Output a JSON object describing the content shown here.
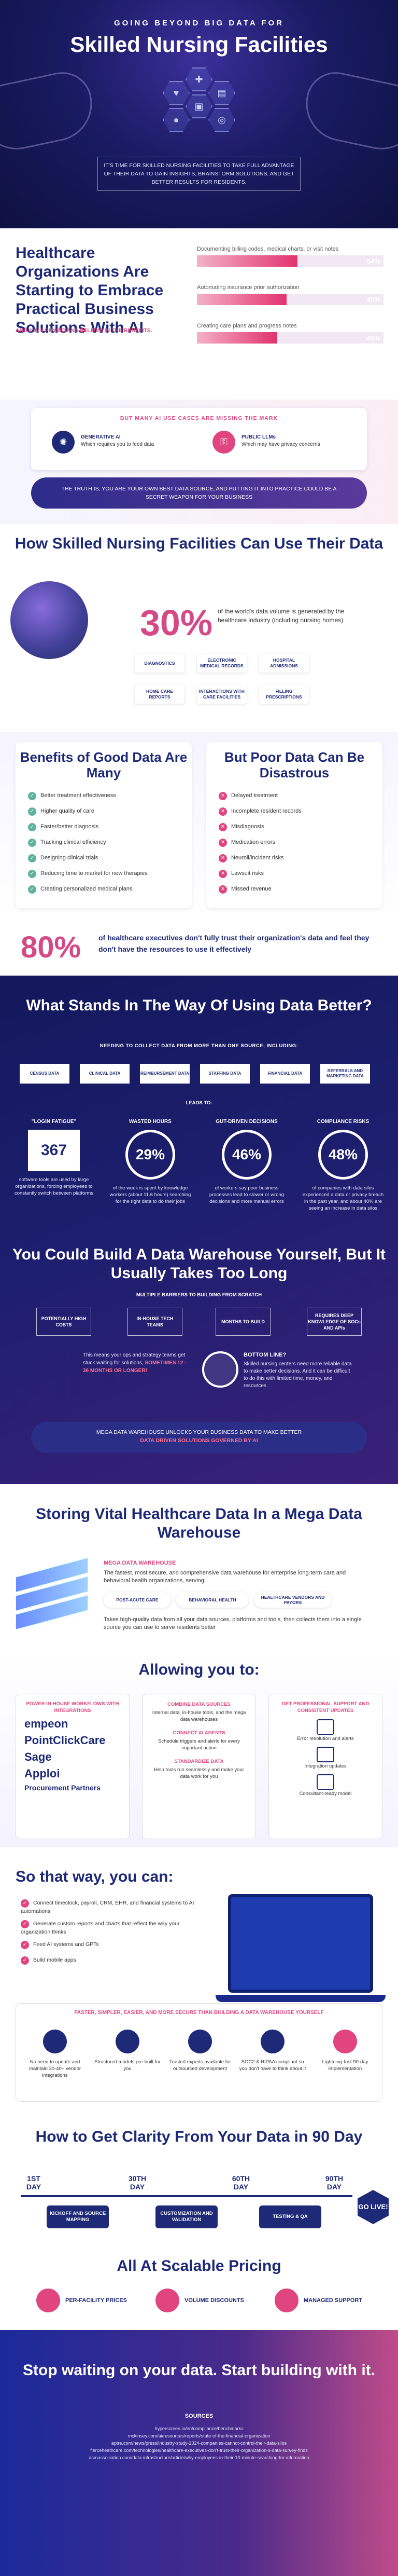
{
  "hero": {
    "kicker": "GOING BEYOND BIG DATA FOR",
    "title": "Skilled Nursing Facilities",
    "lead": "IT'S TIME FOR SKILLED NURSING FACILITIES TO TAKE FULL ADVANTAGE OF THEIR DATA TO GAIN INSIGHTS, BRAINSTORM SOLUTIONS, AND GET BETTER RESULTS FOR RESIDENTS."
  },
  "adoption": {
    "title": "Healthcare Organizations Are Starting to Embrace Practical Business Solutions With AI",
    "sub": "AND 2 IN 3 PHYSICIANS BELIEVE IN THE BENEFITS.",
    "bars": [
      {
        "label": "Documenting billing codes, medical charts, or visit notes",
        "pct_text": "54%",
        "value": 54
      },
      {
        "label": "Automating insurance prior authorization",
        "pct_text": "48%",
        "value": 48
      },
      {
        "label": "Creating care plans and progress notes",
        "pct_text": "43%",
        "value": 43
      }
    ]
  },
  "use_cases": {
    "title": "BUT MANY AI USE CASES ARE MISSING THE MARK",
    "left_head": "GENERATIVE AI",
    "left_text": "Which requires you to feed data",
    "right_head": "PUBLIC LLMs",
    "right_text": "Which may have privacy concerns",
    "truth": "THE TRUTH IS, YOU ARE YOUR OWN BEST DATA SOURCE, AND PUTTING IT INTO PRACTICE COULD BE A SECRET WEAPON FOR YOUR BUSINESS"
  },
  "how": {
    "title": "How Skilled Nursing Facilities Can Use Their Data",
    "stat": "30%",
    "desc": "of the world's data volume is generated by the healthcare industry (including nursing homes)",
    "tags": [
      "DIAGNOSTICS",
      "ELECTRONIC MEDICAL RECORDS",
      "HOSPITAL ADMISSIONS",
      "HOME CARE REPORTS",
      "INTERACTIONS WITH CARE FACILITIES",
      "FILLING PRESCRIPTIONS"
    ]
  },
  "benefits": {
    "title": "Benefits of Good Data Are Many",
    "items": [
      "Better treatment effectiveness",
      "Higher quality of care",
      "Faster/better diagnosis",
      "Tracking clinical efficiency",
      "Designing clinical trials",
      "Reducing time to market for new therapies",
      "Creating personalized medical plans"
    ]
  },
  "poor": {
    "title": "But Poor Data Can Be Disastrous",
    "items": [
      "Delayed treatment",
      "Incomplete resident records",
      "Misdiagnosis",
      "Medication errors",
      "Neuroll/incident risks",
      "Lawsuit risks",
      "Missed revenue"
    ]
  },
  "trust": {
    "stat": "80%",
    "text": "of healthcare executives don't fully trust their organization's data and feel they don't have the resources to use it effectively"
  },
  "obstacles": {
    "title": "What Stands In The Way Of Using Data Better?",
    "need": "NEEDING TO COLLECT DATA FROM MORE THAN ONE SOURCE, INCLUDING:",
    "sources": [
      "CENSUS DATA",
      "CLINICAL DATA",
      "REIMBURSEMENT DATA",
      "STAFFING DATA",
      "FINANCIAL DATA",
      "REFERRALS AND MARKETING DATA"
    ],
    "leads_to": "LEADS TO:",
    "stats": [
      {
        "head": "\"LOGIN FATIGUE\"",
        "value": "367",
        "text": "software tools are used by large organizations, forcing employees to constantly switch between platforms"
      },
      {
        "head": "WASTED HOURS",
        "value": "29%",
        "text": "of the week is spent by knowledge workers (about 11.6 hours) searching for the right data to do their jobs"
      },
      {
        "head": "GUT-DRIVEN DECISIONS",
        "value": "46%",
        "text": "of workers say poor business processes lead to slower or wrong decisions and more manual errors"
      },
      {
        "head": "COMPLIANCE RISKS",
        "value": "48%",
        "text": "of companies with data silos experienced a data or privacy breach in the past year, and about 40% are seeing an increase in data silos"
      }
    ],
    "warehouse_title": "You Could Build A Data Warehouse Yourself, But It Usually Takes Too Long",
    "barriers_head": "MULTIPLE BARRIERS TO BUILDING FROM SCRATCH",
    "barriers": [
      "POTENTIALLY HIGH COSTS",
      "IN-HOUSE TECH TEAMS",
      "MONTHS TO BUILD",
      "REQUIRES DEEP KNOWLEDGE OF SOCs AND APIs"
    ],
    "means": "This means your ops and strategy teams get stuck waiting for solutions,",
    "means_b": "SOMETIMES 12 - 36 MONTHS OR LONGER!",
    "bottom_head": "BOTTOM LINE?",
    "bottom_text": "Skilled nursing centers need more reliable data to make better decisions. And it can be difficult to do this with limited time, money, and resources.",
    "mega": "MEGA DATA WAREHOUSE UNLOCKS YOUR BUSINESS DATA TO MAKE BETTER",
    "mega_b": "DATA DRIVEN SOLUTIONS GOVERNED BY AI"
  },
  "storing": {
    "title": "Storing Vital Healthcare Data In a Mega Data Warehouse",
    "mt": "MEGA DATA WAREHOUSE",
    "md": "The fastest, most secure, and comprehensive data warehouse for enterprise long-term care and behavioral health organizations, serving:",
    "chips": [
      "POST-ACUTE CARE",
      "BEHAVIORAL HEALTH",
      "HEALTHCARE VENDORS AND PAYORS"
    ],
    "md2": "Takes high-quality data from all your data sources, platforms and tools, then collects them into a single source you can use to serve residents better"
  },
  "allowing": {
    "title": "Allowing you to:",
    "c1_title": "POWER IN-HOUSE WORKFLOWS WITH INTEGRATIONS",
    "logos": [
      "empeon",
      "PointClickCare",
      "Sage",
      "Apploi",
      "Procurement Partners"
    ],
    "c2_title": "COMBINE DATA SOURCES",
    "c2_text": "Internal data, in-house tools, and the mega data warehouses",
    "c2b_title": "CONNECT AI AGENTS",
    "c2b_text": "Schedule triggers and alerts for every important action",
    "c2c_title": "STANDARDIZE DATA",
    "c2c_text": "Help tools run seamlessly and make your data work for you",
    "c3_title": "GET PROFESSIONAL SUPPORT AND CONSISTENT UPDATES",
    "c3_items": [
      "Error resolution and alerts",
      "Integration updates",
      "Consultant-ready model"
    ]
  },
  "canway": {
    "title": "So that way, you can:",
    "items": [
      "Connect timeclock, payroll, CRM, EHR, and financial systems to AI automations",
      "Generate custom reports and charts that reflect the way your organization thinks",
      "Feed AI systems and GPTs",
      "Build mobile apps"
    ],
    "fast_title": "FASTER, SIMPLER, EASIER, AND MORE SECURE THAN BUILDING A DATA WAREHOUSE YOURSELF",
    "fast": [
      "No need to update and maintain 30-40+ vendor integrations",
      "Structured models pre-built for you",
      "Trusted experts available for outsourced development",
      "SOC2 & HIPAA compliant so you don't have to think about it",
      "Lightning-fast 90-day implementation"
    ]
  },
  "timeline": {
    "title": "How to Get Clarity From Your Data in 90 Day",
    "days": [
      "1ST DAY",
      "30TH DAY",
      "60TH DAY",
      "90TH DAY"
    ],
    "phases": [
      "KICKOFF AND SOURCE MAPPING",
      "CUSTOMIZATION AND VALIDATION",
      "TESTING & QA"
    ],
    "golive": "GO LIVE!"
  },
  "pricing": {
    "title": "All At Scalable Pricing",
    "items": [
      "PER-FACILITY PRICES",
      "VOLUME DISCOUNTS",
      "MANAGED SUPPORT"
    ]
  },
  "footer": {
    "title": "Stop waiting on your data. Start building with it.",
    "sources_head": "SOURCES",
    "sources": [
      "hyperscreen.io/en/compliance/benchmarks",
      "mckinsey.com/ai/resources/reports/state-of-the-financial-organization",
      "aptre.com/news/press/industry-study-2024-companies-cannot-control-their-data-silos",
      "fierceheathcare.com/technologies/healthcare-executives-don't-trust-their-organization-s-data-survey-finds",
      "asmassociation.com/data-infrastructure/article/why-employees-in-their-10-minute-searching-for-information"
    ]
  }
}
